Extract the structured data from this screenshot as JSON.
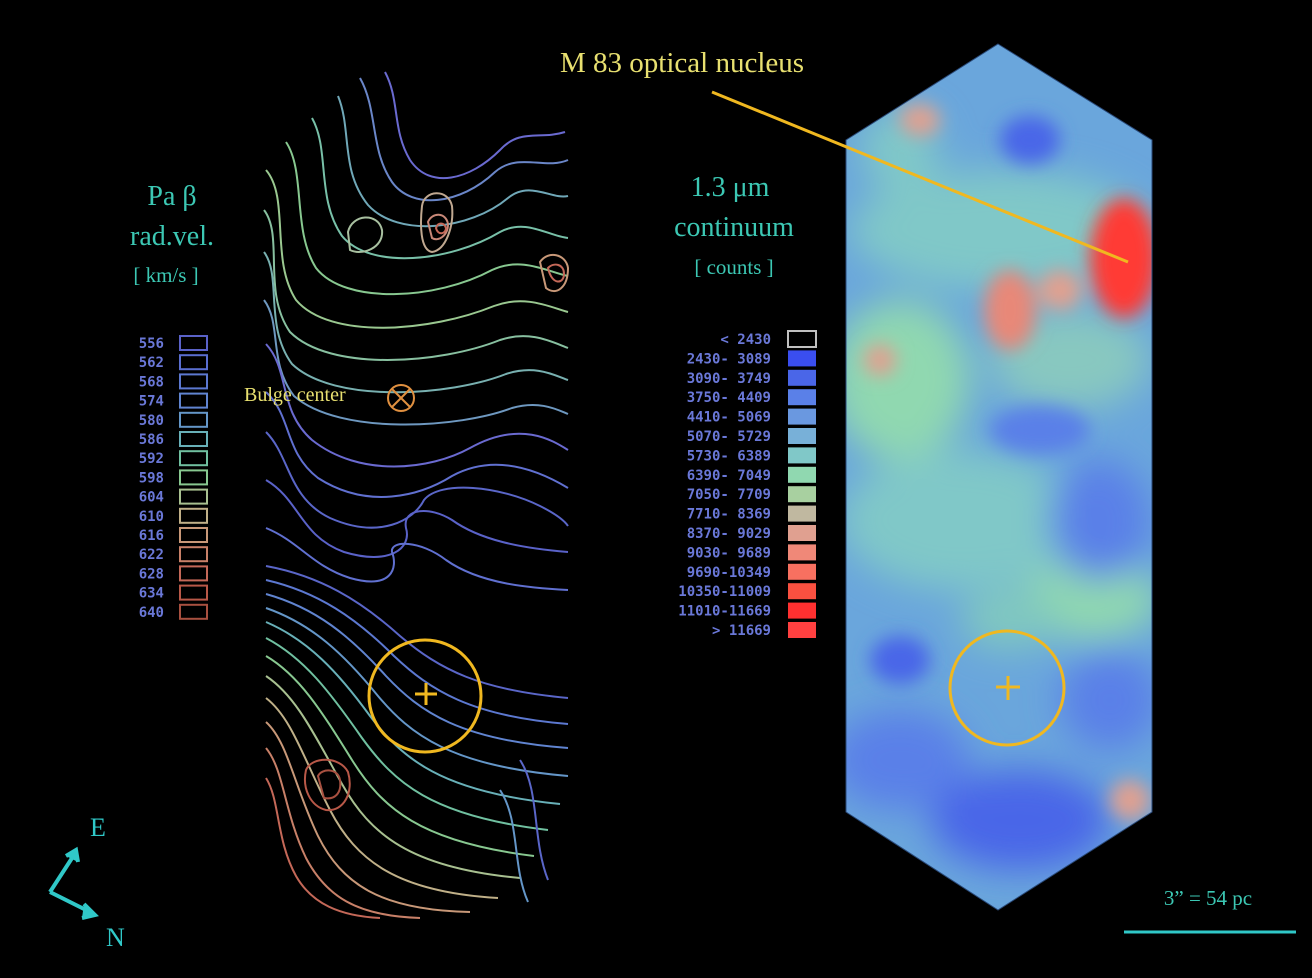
{
  "colors": {
    "background": "#000000",
    "teal_text": "#3cc8b4",
    "legend_num": "#6a78d8",
    "label_yellow": "#e8e070",
    "marker_gold": "#f0b820",
    "compass": "#30c8c8"
  },
  "left_panel": {
    "title_line1": "Pa β",
    "title_line2": "rad.vel.",
    "unit": "[ km/s ]",
    "legend": [
      {
        "label": "556",
        "color": "#5a62c8"
      },
      {
        "label": "562",
        "color": "#5a6ed0"
      },
      {
        "label": "568",
        "color": "#5c78d0"
      },
      {
        "label": "574",
        "color": "#6084d0"
      },
      {
        "label": "580",
        "color": "#6496c8"
      },
      {
        "label": "586",
        "color": "#68b0b8"
      },
      {
        "label": "592",
        "color": "#70c0a0"
      },
      {
        "label": "598",
        "color": "#88c890"
      },
      {
        "label": "604",
        "color": "#a8c090"
      },
      {
        "label": "610",
        "color": "#c0b088"
      },
      {
        "label": "616",
        "color": "#c89878"
      },
      {
        "label": "622",
        "color": "#c88068"
      },
      {
        "label": "628",
        "color": "#c46858"
      },
      {
        "label": "634",
        "color": "#b85848"
      },
      {
        "label": "640",
        "color": "#a85040"
      }
    ],
    "bulge_label": "Bulge center"
  },
  "right_panel": {
    "title_line1": "1.3 μm",
    "title_line2": "continuum",
    "unit": "[ counts ]",
    "legend": [
      {
        "label": "<  2430",
        "color": "#000000",
        "outline": true
      },
      {
        "label": "2430-  3089",
        "color": "#3a4ef0"
      },
      {
        "label": "3090-  3749",
        "color": "#4a66e8"
      },
      {
        "label": "3750-  4409",
        "color": "#5a80e8"
      },
      {
        "label": "4410-  5069",
        "color": "#6a98e0"
      },
      {
        "label": "5070-  5729",
        "color": "#78b0d8"
      },
      {
        "label": "5730-  6389",
        "color": "#80c8c8"
      },
      {
        "label": "6390-  7049",
        "color": "#90d8b0"
      },
      {
        "label": "7050-  7709",
        "color": "#a8d0a0"
      },
      {
        "label": "7710-  8369",
        "color": "#c0b8a0"
      },
      {
        "label": "8370-  9029",
        "color": "#e0a090"
      },
      {
        "label": "9030-  9689",
        "color": "#f08878"
      },
      {
        "label": "9690-10349",
        "color": "#f87060"
      },
      {
        "label": "10350-11009",
        "color": "#fa5040"
      },
      {
        "label": "11010-11669",
        "color": "#ff3030"
      },
      {
        "label": ">  11669",
        "color": "#ff4040"
      }
    ]
  },
  "annotation": {
    "nucleus_label": "M 83  optical nucleus"
  },
  "compass": {
    "east": "E",
    "north": "N"
  },
  "scale_bar": {
    "label": "3” = 54 pc"
  }
}
